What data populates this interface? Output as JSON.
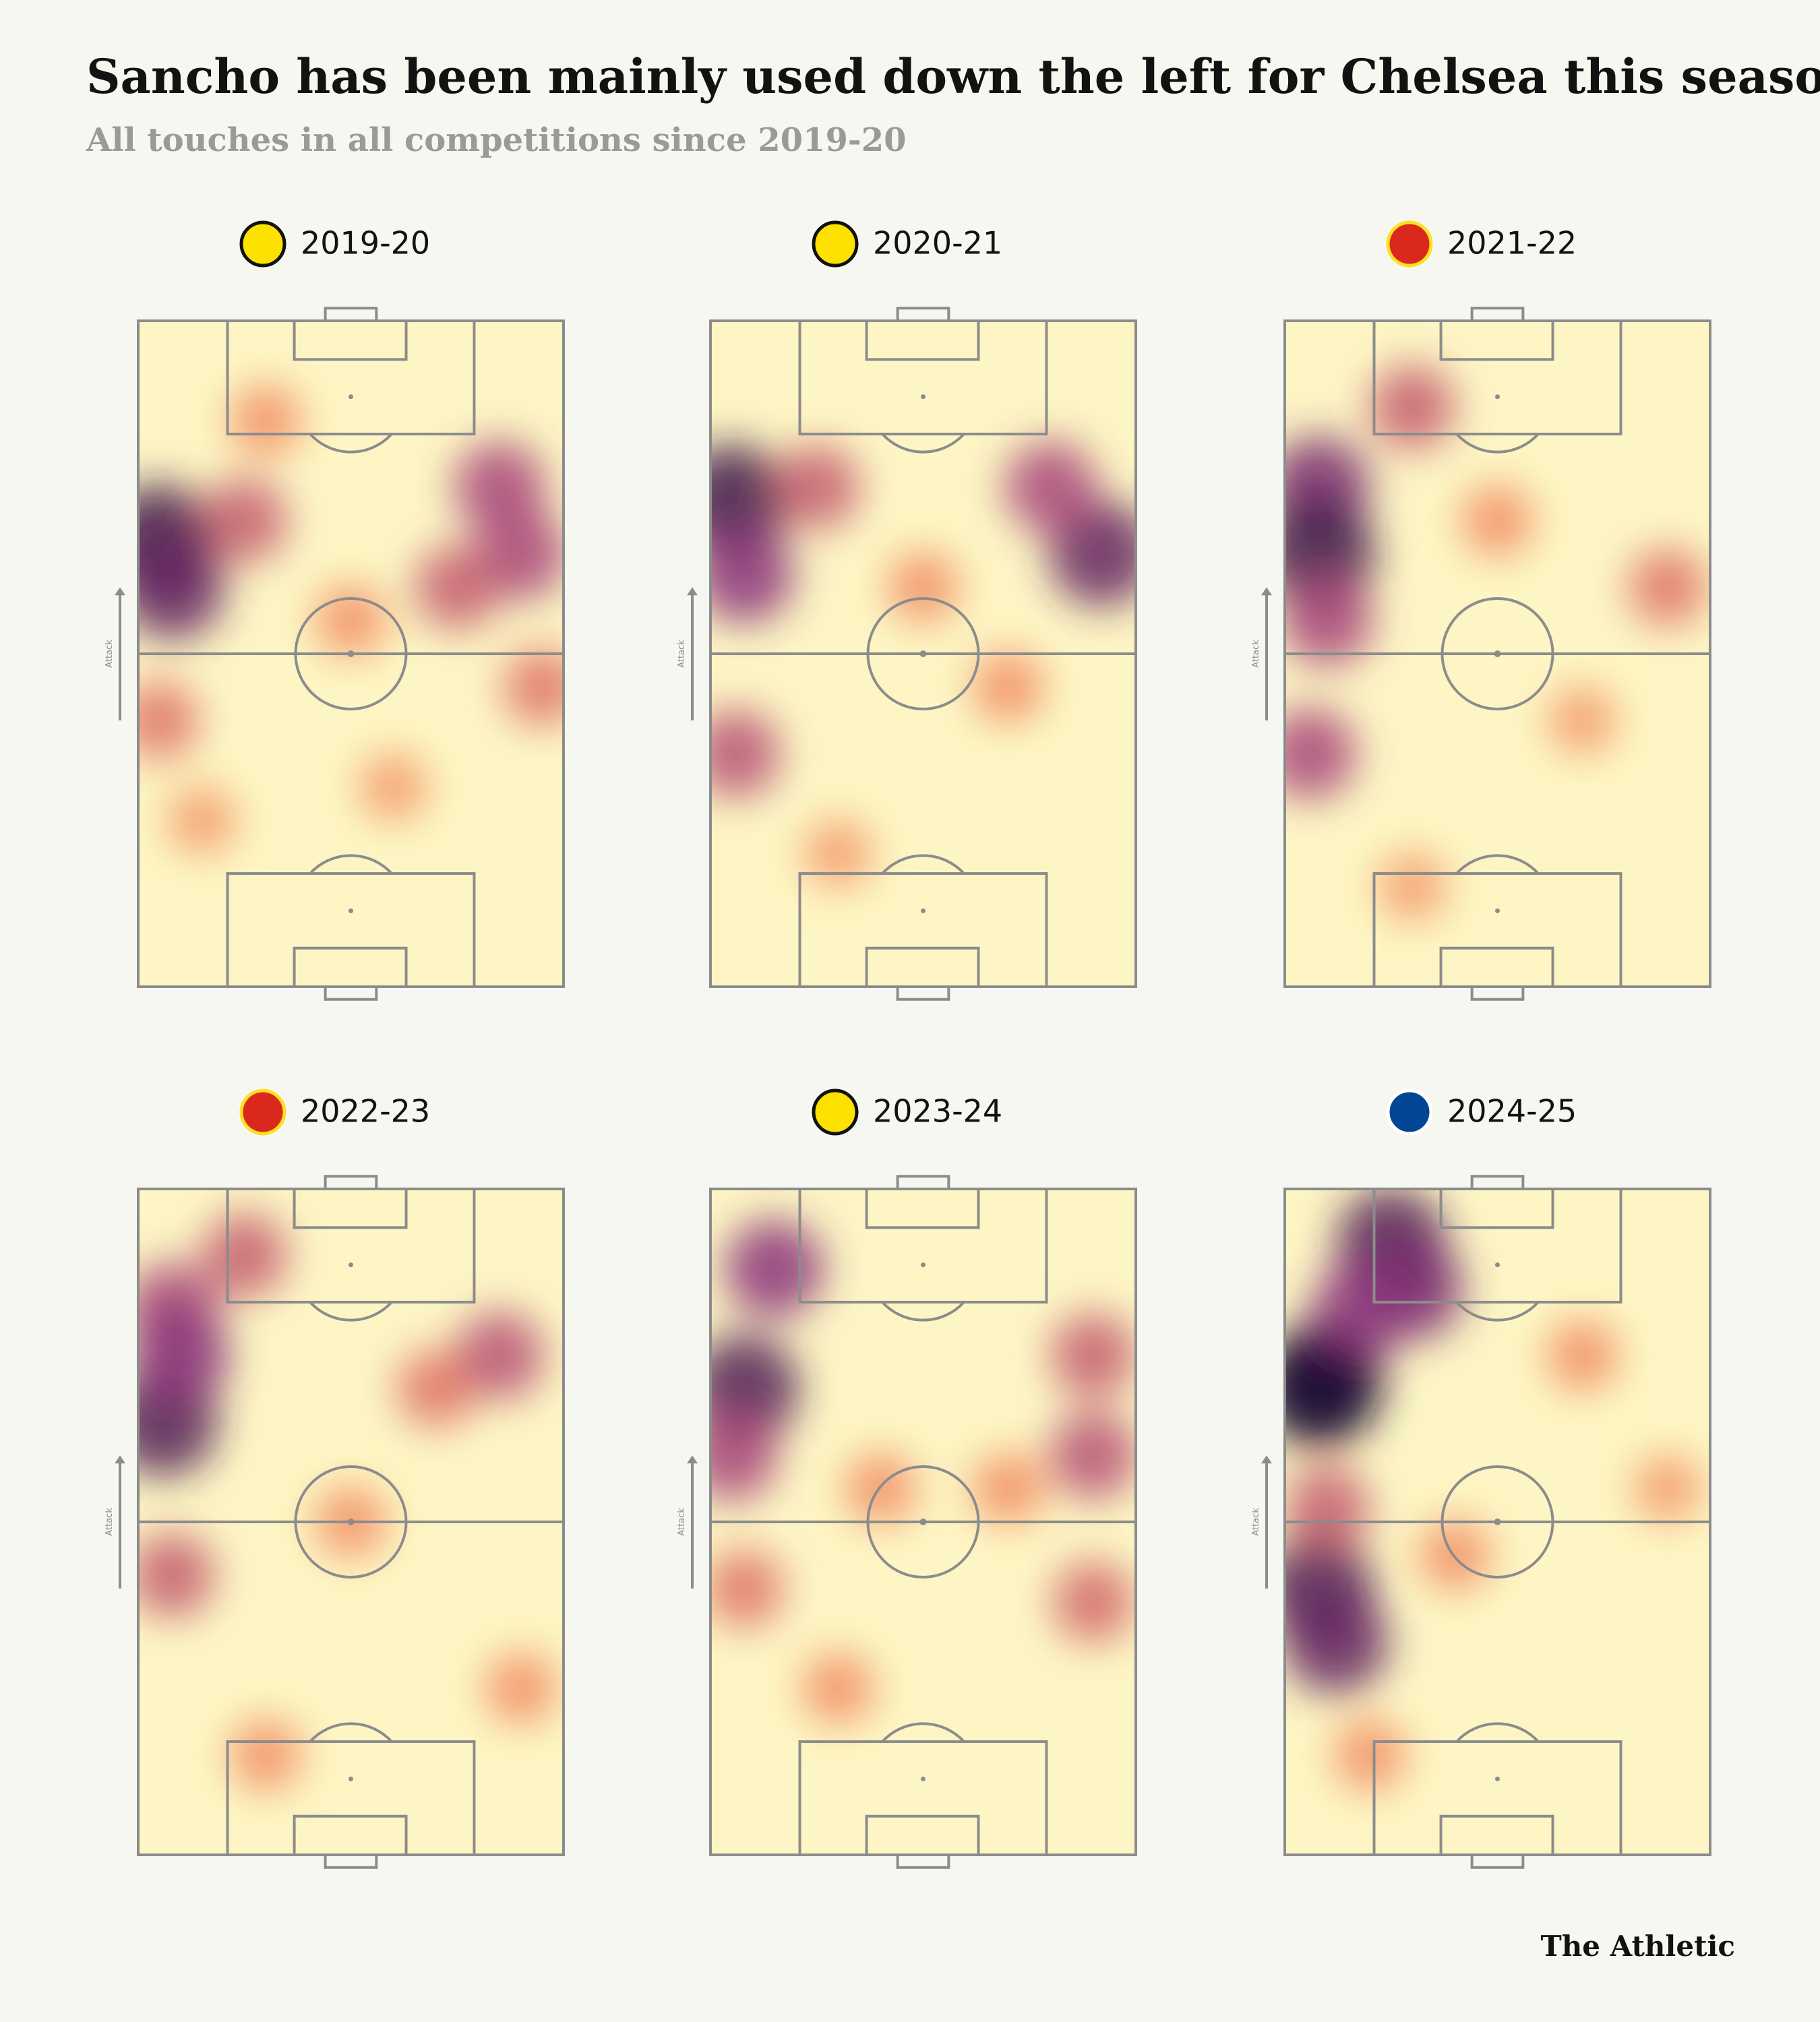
{
  "header": {
    "title": "Sancho has been mainly used down the left for Chelsea this season",
    "subtitle": "All touches in all competitions since 2019-20"
  },
  "attack_label": "Attack",
  "footer": "The Athletic",
  "panels": [
    {
      "season": "2019-20",
      "hotspots": [
        {
          "x": 5,
          "y": 33,
          "intensity": 0.9
        },
        {
          "x": 8,
          "y": 40,
          "intensity": 0.8
        },
        {
          "x": 25,
          "y": 30,
          "intensity": 0.5
        },
        {
          "x": 85,
          "y": 25,
          "intensity": 0.6
        },
        {
          "x": 90,
          "y": 35,
          "intensity": 0.6
        },
        {
          "x": 75,
          "y": 40,
          "intensity": 0.5
        },
        {
          "x": 30,
          "y": 15,
          "intensity": 0.3
        },
        {
          "x": 5,
          "y": 60,
          "intensity": 0.4
        },
        {
          "x": 95,
          "y": 55,
          "intensity": 0.4
        },
        {
          "x": 50,
          "y": 45,
          "intensity": 0.3
        },
        {
          "x": 15,
          "y": 75,
          "intensity": 0.25
        },
        {
          "x": 60,
          "y": 70,
          "intensity": 0.25
        }
      ]
    },
    {
      "season": "2020-21",
      "hotspots": [
        {
          "x": 5,
          "y": 27,
          "intensity": 0.9
        },
        {
          "x": 8,
          "y": 38,
          "intensity": 0.7
        },
        {
          "x": 92,
          "y": 35,
          "intensity": 0.8
        },
        {
          "x": 80,
          "y": 25,
          "intensity": 0.6
        },
        {
          "x": 25,
          "y": 25,
          "intensity": 0.5
        },
        {
          "x": 6,
          "y": 65,
          "intensity": 0.55
        },
        {
          "x": 50,
          "y": 40,
          "intensity": 0.3
        },
        {
          "x": 70,
          "y": 55,
          "intensity": 0.3
        },
        {
          "x": 30,
          "y": 80,
          "intensity": 0.25
        }
      ]
    },
    {
      "season": "2021-22",
      "hotspots": [
        {
          "x": 8,
          "y": 25,
          "intensity": 0.75
        },
        {
          "x": 8,
          "y": 35,
          "intensity": 0.9
        },
        {
          "x": 10,
          "y": 45,
          "intensity": 0.6
        },
        {
          "x": 30,
          "y": 13,
          "intensity": 0.5
        },
        {
          "x": 6,
          "y": 65,
          "intensity": 0.6
        },
        {
          "x": 90,
          "y": 40,
          "intensity": 0.4
        },
        {
          "x": 50,
          "y": 30,
          "intensity": 0.3
        },
        {
          "x": 30,
          "y": 85,
          "intensity": 0.25
        },
        {
          "x": 70,
          "y": 60,
          "intensity": 0.25
        }
      ]
    },
    {
      "season": "2022-23",
      "hotspots": [
        {
          "x": 8,
          "y": 18,
          "intensity": 0.6
        },
        {
          "x": 6,
          "y": 35,
          "intensity": 0.85
        },
        {
          "x": 10,
          "y": 25,
          "intensity": 0.7
        },
        {
          "x": 25,
          "y": 10,
          "intensity": 0.5
        },
        {
          "x": 85,
          "y": 25,
          "intensity": 0.55
        },
        {
          "x": 70,
          "y": 30,
          "intensity": 0.4
        },
        {
          "x": 8,
          "y": 58,
          "intensity": 0.5
        },
        {
          "x": 50,
          "y": 50,
          "intensity": 0.3
        },
        {
          "x": 30,
          "y": 85,
          "intensity": 0.3
        },
        {
          "x": 90,
          "y": 75,
          "intensity": 0.3
        }
      ]
    },
    {
      "season": "2023-24",
      "hotspots": [
        {
          "x": 8,
          "y": 30,
          "intensity": 0.85
        },
        {
          "x": 15,
          "y": 12,
          "intensity": 0.7
        },
        {
          "x": 5,
          "y": 40,
          "intensity": 0.6
        },
        {
          "x": 90,
          "y": 25,
          "intensity": 0.5
        },
        {
          "x": 90,
          "y": 40,
          "intensity": 0.55
        },
        {
          "x": 70,
          "y": 45,
          "intensity": 0.3
        },
        {
          "x": 8,
          "y": 60,
          "intensity": 0.4
        },
        {
          "x": 90,
          "y": 62,
          "intensity": 0.45
        },
        {
          "x": 30,
          "y": 75,
          "intensity": 0.3
        },
        {
          "x": 40,
          "y": 45,
          "intensity": 0.3
        }
      ]
    },
    {
      "season": "2024-25",
      "hotspots": [
        {
          "x": 10,
          "y": 28,
          "intensity": 0.9
        },
        {
          "x": 8,
          "y": 30,
          "intensity": 1.0
        },
        {
          "x": 25,
          "y": 8,
          "intensity": 0.85
        },
        {
          "x": 30,
          "y": 15,
          "intensity": 0.75
        },
        {
          "x": 18,
          "y": 18,
          "intensity": 0.7
        },
        {
          "x": 8,
          "y": 60,
          "intensity": 0.85
        },
        {
          "x": 12,
          "y": 68,
          "intensity": 0.8
        },
        {
          "x": 10,
          "y": 48,
          "intensity": 0.5
        },
        {
          "x": 70,
          "y": 25,
          "intensity": 0.3
        },
        {
          "x": 90,
          "y": 45,
          "intensity": 0.25
        },
        {
          "x": 40,
          "y": 55,
          "intensity": 0.3
        },
        {
          "x": 20,
          "y": 85,
          "intensity": 0.3
        }
      ]
    }
  ]
}
